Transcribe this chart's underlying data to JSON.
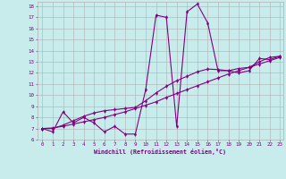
{
  "xlabel": "Windchill (Refroidissement éolien,°C)",
  "xlim": [
    -0.5,
    23.3
  ],
  "ylim": [
    6.0,
    18.4
  ],
  "xticks": [
    0,
    1,
    2,
    3,
    4,
    5,
    6,
    7,
    8,
    9,
    10,
    11,
    12,
    13,
    14,
    15,
    16,
    17,
    18,
    19,
    20,
    21,
    22,
    23
  ],
  "yticks": [
    6,
    7,
    8,
    9,
    10,
    11,
    12,
    13,
    14,
    15,
    16,
    17,
    18
  ],
  "bg_color": "#c8ecec",
  "line_color": "#800080",
  "grid_color": "#b0b0b0",
  "line1_x": [
    0,
    1,
    2,
    3,
    4,
    5,
    6,
    7,
    8,
    9,
    10,
    11,
    12,
    13,
    14,
    15,
    16,
    17,
    18,
    19,
    20,
    21,
    22,
    23
  ],
  "line1_y": [
    7.0,
    6.7,
    8.5,
    7.5,
    8.0,
    7.5,
    6.7,
    7.2,
    6.5,
    6.5,
    10.5,
    17.2,
    17.0,
    7.2,
    17.5,
    18.2,
    16.5,
    12.2,
    12.2,
    12.0,
    12.2,
    13.3,
    13.2,
    13.5
  ],
  "line2_x": [
    0,
    1,
    2,
    3,
    4,
    5,
    6,
    7,
    8,
    9,
    10,
    11,
    12,
    13,
    14,
    15,
    16,
    17,
    18,
    19,
    20,
    21,
    22,
    23
  ],
  "line2_y": [
    7.0,
    7.05,
    7.2,
    7.4,
    7.6,
    7.8,
    8.0,
    8.25,
    8.5,
    8.8,
    9.1,
    9.4,
    9.8,
    10.15,
    10.5,
    10.85,
    11.2,
    11.55,
    11.9,
    12.2,
    12.5,
    12.8,
    13.1,
    13.4
  ],
  "line3_x": [
    0,
    1,
    2,
    3,
    4,
    5,
    6,
    7,
    8,
    9,
    10,
    11,
    12,
    13,
    14,
    15,
    16,
    17,
    18,
    19,
    20,
    21,
    22,
    23
  ],
  "line3_y": [
    7.0,
    7.0,
    7.3,
    7.7,
    8.1,
    8.4,
    8.6,
    8.7,
    8.8,
    8.9,
    9.5,
    10.2,
    10.8,
    11.3,
    11.7,
    12.1,
    12.35,
    12.3,
    12.2,
    12.4,
    12.5,
    13.0,
    13.4,
    13.5
  ]
}
